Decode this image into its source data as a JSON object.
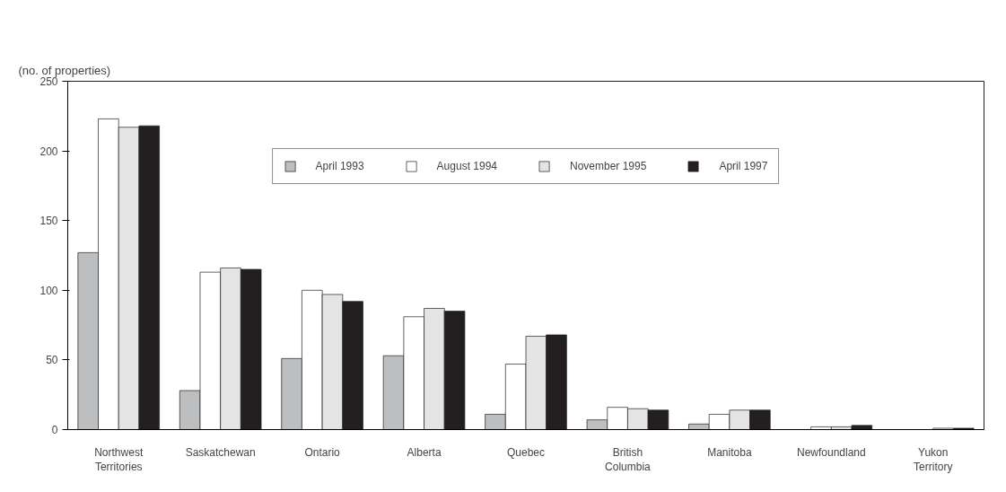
{
  "chart_data": {
    "type": "bar",
    "ylabel": "(no. of properties)",
    "categories": [
      "Northwest Territories",
      "Saskatchewan",
      "Ontario",
      "Alberta",
      "Quebec",
      "British Columbia",
      "Manitoba",
      "Newfoundland",
      "Yukon Territory"
    ],
    "series": [
      {
        "name": "April 1993",
        "color": "#bdbec0",
        "values": [
          127,
          28,
          51,
          53,
          11,
          7,
          4,
          null,
          null
        ]
      },
      {
        "name": "August 1994",
        "color": "#ffffff",
        "values": [
          223,
          113,
          100,
          81,
          47,
          16,
          11,
          2,
          null
        ]
      },
      {
        "name": "November 1995",
        "color": "#e4e4e4",
        "values": [
          217,
          116,
          97,
          87,
          67,
          15,
          14,
          2,
          1
        ]
      },
      {
        "name": "April 1997",
        "color": "#231f20",
        "values": [
          218,
          115,
          92,
          85,
          68,
          14,
          14,
          3,
          1
        ]
      }
    ],
    "ylim": [
      0,
      250
    ],
    "yticks": [
      0,
      50,
      100,
      150,
      200,
      250
    ],
    "grid": false,
    "legend": "top"
  }
}
